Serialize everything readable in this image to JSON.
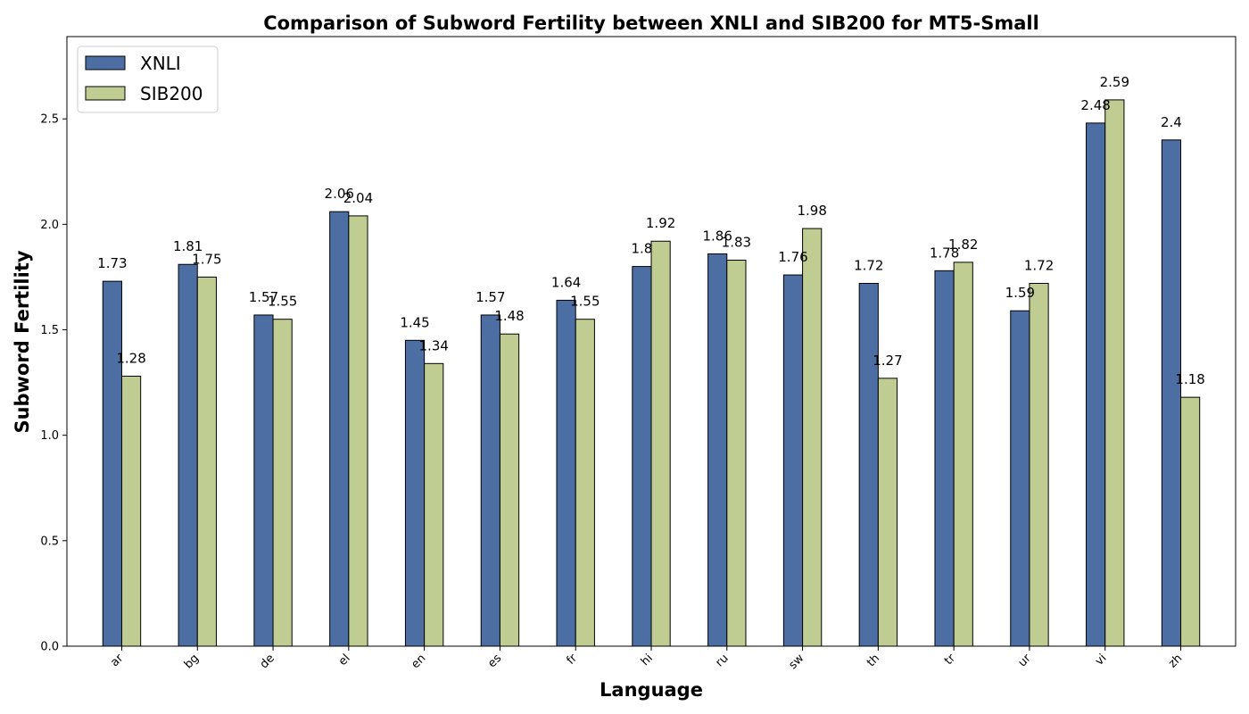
{
  "chart_data": {
    "type": "bar",
    "title": "Comparison of Subword Fertility between XNLI and SIB200 for MT5-Small",
    "xlabel": "Language",
    "ylabel": "Subword Fertility",
    "categories": [
      "ar",
      "bg",
      "de",
      "el",
      "en",
      "es",
      "fr",
      "hi",
      "ru",
      "sw",
      "th",
      "tr",
      "ur",
      "vi",
      "zh"
    ],
    "series": [
      {
        "name": "XNLI",
        "color": "#4c6ea3",
        "values": [
          1.73,
          1.81,
          1.57,
          2.06,
          1.45,
          1.57,
          1.64,
          1.8,
          1.86,
          1.76,
          1.72,
          1.78,
          1.59,
          2.48,
          2.4
        ]
      },
      {
        "name": "SIB200",
        "color": "#bfcc92",
        "values": [
          1.28,
          1.75,
          1.55,
          2.04,
          1.34,
          1.48,
          1.55,
          1.92,
          1.83,
          1.98,
          1.27,
          1.82,
          1.72,
          2.59,
          1.18
        ]
      }
    ],
    "ylim": [
      0,
      2.89
    ],
    "yticks": [
      "0.0",
      "0.5",
      "1.0",
      "1.5",
      "2.0",
      "2.5"
    ],
    "grid": false,
    "legend_position": "top-left"
  }
}
